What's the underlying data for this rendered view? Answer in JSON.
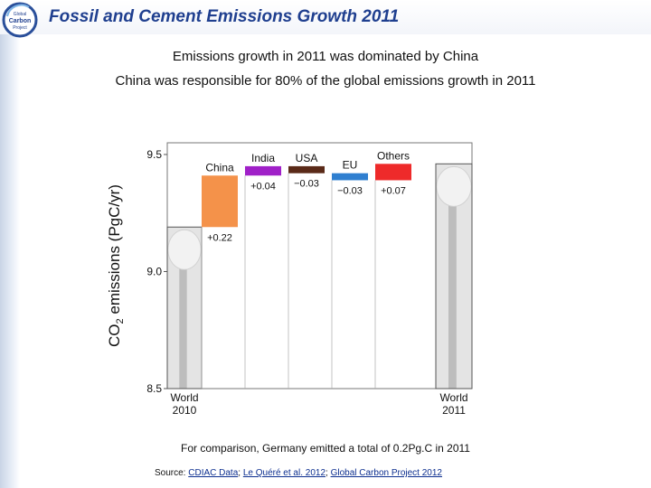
{
  "slide": {
    "title": "Fossil and Cement Emissions Growth 2011",
    "subtitle_line1": "Emissions growth in 2011 was dominated by China",
    "subtitle_line2": "China was responsible for 80% of the global emissions growth in 2011",
    "comparison": "For comparison, Germany emitted a total of 0.2Pg.C in 2011",
    "source_prefix": "Source: ",
    "source_links": [
      "CDIAC Data",
      "Le Quéré et al. 2012",
      "Global Carbon Project 2012"
    ],
    "source_separator": "; ",
    "logo_text": [
      "Global",
      "Carbon",
      "Project"
    ]
  },
  "colors": {
    "title": "#1f3f8f",
    "China": "#f4924a",
    "India": "#a020c8",
    "USA": "#5a2a18",
    "EU": "#2f7fd0",
    "Others": "#ee2a2a"
  },
  "chart_data": {
    "type": "bar",
    "subtype": "waterfall",
    "title": "",
    "ylabel": "CO2 emissions (PgC/yr)",
    "ylabel_parts": {
      "pre": "CO",
      "sub": "2",
      "post": " emissions (PgC/yr)"
    },
    "ylim": [
      8.5,
      9.55
    ],
    "yticks": [
      8.5,
      9.0,
      9.5
    ],
    "ytick_labels": [
      "8.5",
      "9.0",
      "9.5"
    ],
    "start": {
      "name": "World 2010",
      "label_line1": "World",
      "label_line2": "2010",
      "value": 9.19
    },
    "end": {
      "name": "World 2011",
      "label_line1": "World",
      "label_line2": "2011",
      "value": 9.46
    },
    "categories": [
      "China",
      "India",
      "USA",
      "EU",
      "Others"
    ],
    "values": [
      0.22,
      0.04,
      -0.03,
      -0.03,
      0.07
    ],
    "value_labels": [
      "+0.22",
      "+0.04",
      "−0.03",
      "−0.03",
      "+0.07"
    ]
  }
}
